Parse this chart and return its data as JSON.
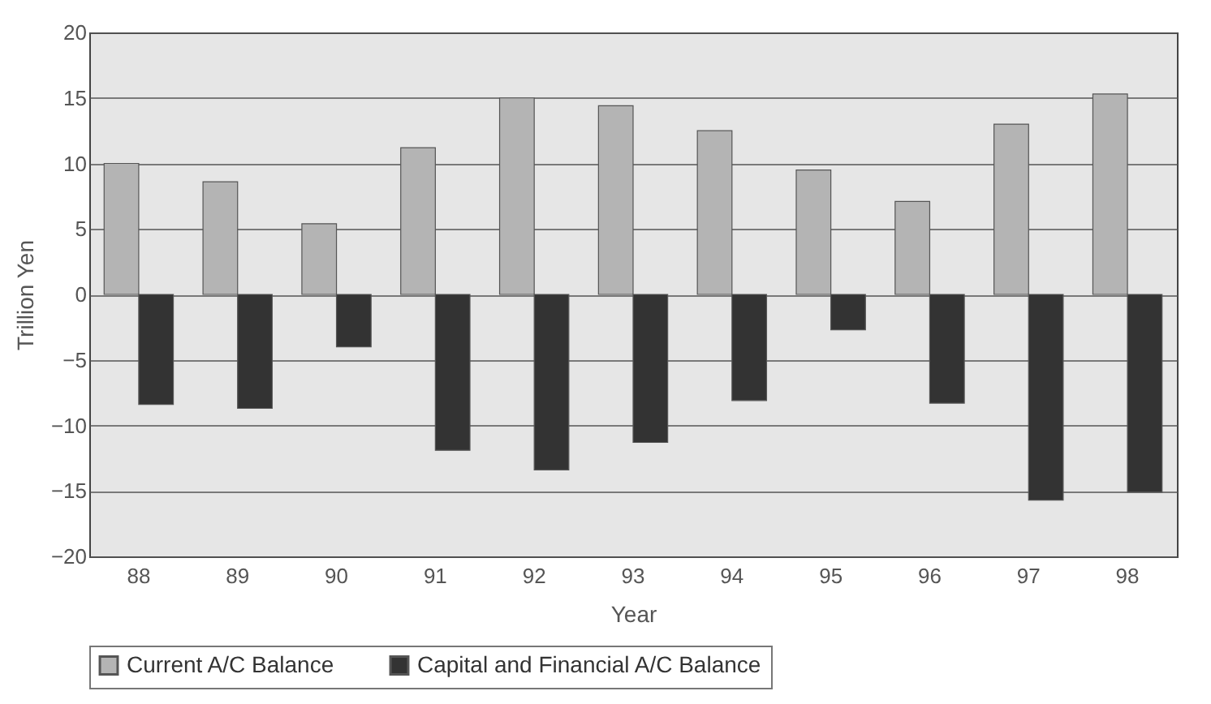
{
  "chart_data": {
    "type": "bar",
    "xlabel": "Year",
    "ylabel": "Trillion Yen",
    "categories": [
      "88",
      "89",
      "90",
      "91",
      "92",
      "93",
      "94",
      "95",
      "96",
      "97",
      "98"
    ],
    "series": [
      {
        "name": "Current A/C Balance",
        "color": "#b4b4b4",
        "values": [
          10.0,
          8.6,
          5.4,
          11.2,
          15.0,
          14.4,
          12.5,
          9.5,
          7.1,
          13.0,
          15.3
        ]
      },
      {
        "name": "Capital and Financial A/C Balance",
        "color": "#333333",
        "values": [
          -8.4,
          -8.7,
          -4.0,
          -11.9,
          -13.4,
          -11.3,
          -8.1,
          -2.7,
          -8.3,
          -15.7,
          -15.1
        ]
      }
    ],
    "ylim": [
      -20,
      20
    ],
    "yticks": [
      -20,
      -15,
      -10,
      -5,
      0,
      5,
      10,
      15,
      20
    ],
    "grid": "y",
    "legend": "bottom"
  }
}
